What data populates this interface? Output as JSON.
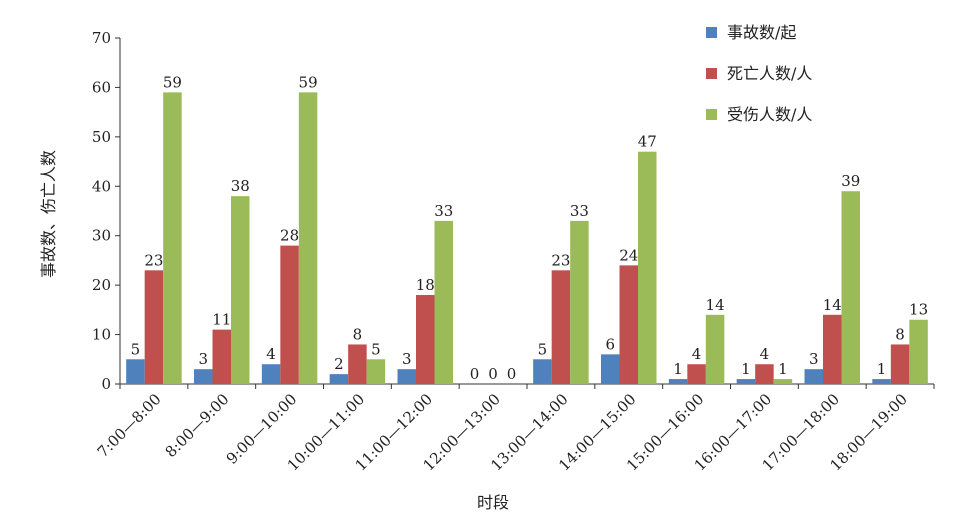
{
  "chart_data": {
    "type": "bar",
    "title": "",
    "xlabel": "时段",
    "ylabel": "事故数、伤亡人数",
    "ylim": [
      0,
      70
    ],
    "yticks": [
      0,
      10,
      20,
      30,
      40,
      50,
      60,
      70
    ],
    "grid": false,
    "legend_position": "top-right",
    "categories": [
      "7:00—8:00",
      "8:00—9:00",
      "9:00—10:00",
      "10:00—11:00",
      "11:00—12:00",
      "12:00—13:00",
      "13:00—14:00",
      "14:00—15:00",
      "15:00—16:00",
      "16:00—17:00",
      "17:00—18:00",
      "18:00—19:00"
    ],
    "series": [
      {
        "name": "事故数/起",
        "color": "#4f81bd",
        "values": [
          5,
          3,
          4,
          2,
          3,
          0,
          5,
          6,
          1,
          1,
          3,
          1
        ]
      },
      {
        "name": "死亡人数/人",
        "color": "#c0504d",
        "values": [
          23,
          11,
          28,
          8,
          18,
          0,
          23,
          24,
          4,
          4,
          14,
          8
        ]
      },
      {
        "name": "受伤人数/人",
        "color": "#9bbb59",
        "values": [
          59,
          38,
          59,
          5,
          33,
          0,
          33,
          47,
          14,
          1,
          39,
          13
        ]
      }
    ]
  }
}
